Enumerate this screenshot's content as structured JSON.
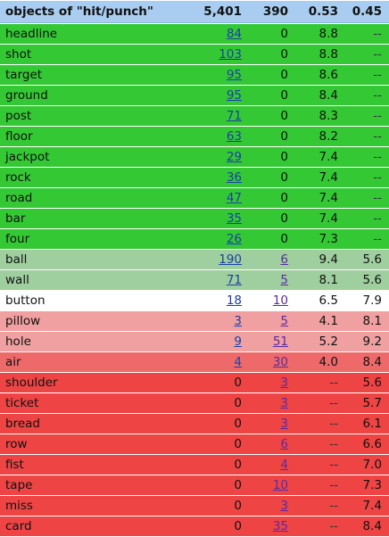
{
  "header": {
    "title": "objects of \"hit/punch\"",
    "c1": "5,401",
    "c2": "390",
    "c3": "0.53",
    "c4": "0.45"
  },
  "colors": {
    "green": "#34c934",
    "lightgreen": "#9fce9f",
    "white": "#ffffff",
    "pink": "#f0a0a0",
    "salmon": "#ee6a6a",
    "red": "#ee4444"
  },
  "rows": [
    {
      "name": "headline",
      "a": "84",
      "a_link": true,
      "b": "0",
      "b_link": false,
      "c": "8.8",
      "d": "--",
      "color": "green"
    },
    {
      "name": "shot",
      "a": "103",
      "a_link": true,
      "b": "0",
      "b_link": false,
      "c": "8.8",
      "d": "--",
      "color": "green"
    },
    {
      "name": "target",
      "a": "95",
      "a_link": true,
      "b": "0",
      "b_link": false,
      "c": "8.6",
      "d": "--",
      "color": "green"
    },
    {
      "name": "ground",
      "a": "95",
      "a_link": true,
      "b": "0",
      "b_link": false,
      "c": "8.4",
      "d": "--",
      "color": "green"
    },
    {
      "name": "post",
      "a": "71",
      "a_link": true,
      "b": "0",
      "b_link": false,
      "c": "8.3",
      "d": "--",
      "color": "green"
    },
    {
      "name": "floor",
      "a": "63",
      "a_link": true,
      "b": "0",
      "b_link": false,
      "c": "8.2",
      "d": "--",
      "color": "green"
    },
    {
      "name": "jackpot",
      "a": "29",
      "a_link": true,
      "b": "0",
      "b_link": false,
      "c": "7.4",
      "d": "--",
      "color": "green"
    },
    {
      "name": "rock",
      "a": "36",
      "a_link": true,
      "b": "0",
      "b_link": false,
      "c": "7.4",
      "d": "--",
      "color": "green"
    },
    {
      "name": "road",
      "a": "47",
      "a_link": true,
      "b": "0",
      "b_link": false,
      "c": "7.4",
      "d": "--",
      "color": "green"
    },
    {
      "name": "bar",
      "a": "35",
      "a_link": true,
      "b": "0",
      "b_link": false,
      "c": "7.4",
      "d": "--",
      "color": "green"
    },
    {
      "name": "four",
      "a": "26",
      "a_link": true,
      "b": "0",
      "b_link": false,
      "c": "7.3",
      "d": "--",
      "color": "green"
    },
    {
      "name": "ball",
      "a": "190",
      "a_link": true,
      "b": "6",
      "b_link": true,
      "c": "9.4",
      "d": "5.6",
      "color": "lightgreen"
    },
    {
      "name": "wall",
      "a": "71",
      "a_link": true,
      "b": "5",
      "b_link": true,
      "c": "8.1",
      "d": "5.6",
      "color": "lightgreen"
    },
    {
      "name": "button",
      "a": "18",
      "a_link": true,
      "b": "10",
      "b_link": true,
      "c": "6.5",
      "d": "7.9",
      "color": "white"
    },
    {
      "name": "pillow",
      "a": "3",
      "a_link": true,
      "b": "5",
      "b_link": true,
      "c": "4.1",
      "d": "8.1",
      "color": "pink"
    },
    {
      "name": "hole",
      "a": "9",
      "a_link": true,
      "b": "51",
      "b_link": true,
      "c": "5.2",
      "d": "9.2",
      "color": "pink"
    },
    {
      "name": "air",
      "a": "4",
      "a_link": true,
      "b": "30",
      "b_link": true,
      "c": "4.0",
      "d": "8.4",
      "color": "salmon"
    },
    {
      "name": "shoulder",
      "a": "0",
      "a_link": false,
      "b": "3",
      "b_link": true,
      "c": "--",
      "d": "5.6",
      "color": "red"
    },
    {
      "name": "ticket",
      "a": "0",
      "a_link": false,
      "b": "3",
      "b_link": true,
      "c": "--",
      "d": "5.7",
      "color": "red"
    },
    {
      "name": "bread",
      "a": "0",
      "a_link": false,
      "b": "3",
      "b_link": true,
      "c": "--",
      "d": "6.1",
      "color": "red"
    },
    {
      "name": "row",
      "a": "0",
      "a_link": false,
      "b": "6",
      "b_link": true,
      "c": "--",
      "d": "6.6",
      "color": "red"
    },
    {
      "name": "fist",
      "a": "0",
      "a_link": false,
      "b": "4",
      "b_link": true,
      "c": "--",
      "d": "7.0",
      "color": "red"
    },
    {
      "name": "tape",
      "a": "0",
      "a_link": false,
      "b": "10",
      "b_link": true,
      "c": "--",
      "d": "7.3",
      "color": "red"
    },
    {
      "name": "miss",
      "a": "0",
      "a_link": false,
      "b": "3",
      "b_link": true,
      "c": "--",
      "d": "7.4",
      "color": "red"
    },
    {
      "name": "card",
      "a": "0",
      "a_link": false,
      "b": "35",
      "b_link": true,
      "c": "--",
      "d": "8.4",
      "color": "red"
    }
  ]
}
